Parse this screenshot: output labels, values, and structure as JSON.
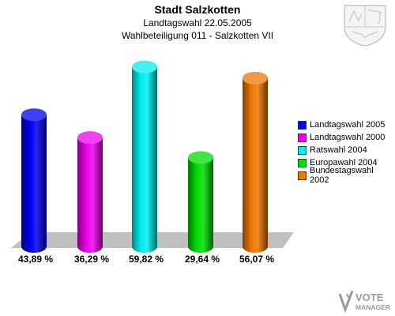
{
  "header": {
    "title": "Stadt Salzkotten",
    "subtitle": "Landtagswahl 22.05.2005",
    "subtitle2": "Wahlbeteiligung 011 - Salzkotten VII"
  },
  "branding": {
    "logo_line1": "VOTE",
    "logo_line2": "MANAGER"
  },
  "chart_data": {
    "type": "bar",
    "title": "Stadt Salzkotten",
    "subtitle": "Landtagswahl 22.05.2005 — Wahlbeteiligung 011 - Salzkotten VII",
    "categories": [
      "Landtagswahl 2005",
      "Landtagswahl 2000",
      "Ratswahl 2004",
      "Europawahl 2004",
      "Bundestagswahl 2002"
    ],
    "values": [
      43.89,
      36.29,
      59.82,
      29.64,
      56.07
    ],
    "value_labels": [
      "43,89 %",
      "36,29 %",
      "59,82 %",
      "29,64 %",
      "56,07 %"
    ],
    "colors": [
      "#0000ee",
      "#ee00ee",
      "#00eeee",
      "#00dd00",
      "#ee7700"
    ],
    "ylim": [
      0,
      65
    ],
    "legend_position": "right",
    "grid": false
  }
}
